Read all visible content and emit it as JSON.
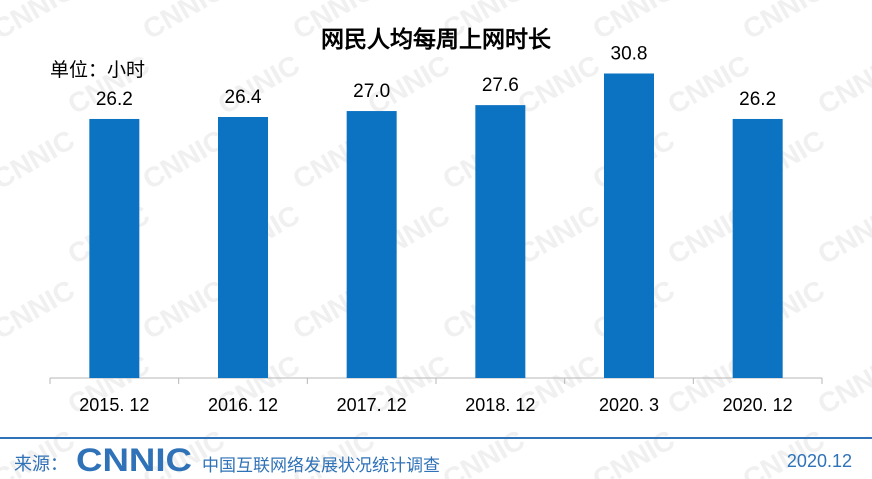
{
  "header": {
    "title": "网民人均每周上网时长",
    "unit": "单位：小时"
  },
  "watermark": "CNNIC",
  "footer": {
    "source_label": "来源：",
    "logo_text": "CNNIC",
    "organization": "中国互联网络发展状况统计调查",
    "date": "2020.12"
  },
  "colors": {
    "bar": "#0b73c2",
    "footer": "#2f72b7",
    "axis": "#b7b7b7"
  },
  "chart_data": {
    "type": "bar",
    "title": "网民人均每周上网时长",
    "ylabel": "单位：小时",
    "categories": [
      "2015.12",
      "2016.12",
      "2017.12",
      "2018.12",
      "2020.3",
      "2020.12"
    ],
    "category_labels": [
      "2015. 12",
      "2016. 12",
      "2017. 12",
      "2018. 12",
      "2020. 3",
      "2020. 12"
    ],
    "values": [
      26.2,
      26.4,
      27.0,
      27.6,
      30.8,
      26.2
    ],
    "value_labels": [
      "26.2",
      "26.4",
      "27.0",
      "27.6",
      "30.8",
      "26.2"
    ],
    "ylim": [
      0,
      38
    ],
    "grid": false,
    "legend": "none"
  }
}
